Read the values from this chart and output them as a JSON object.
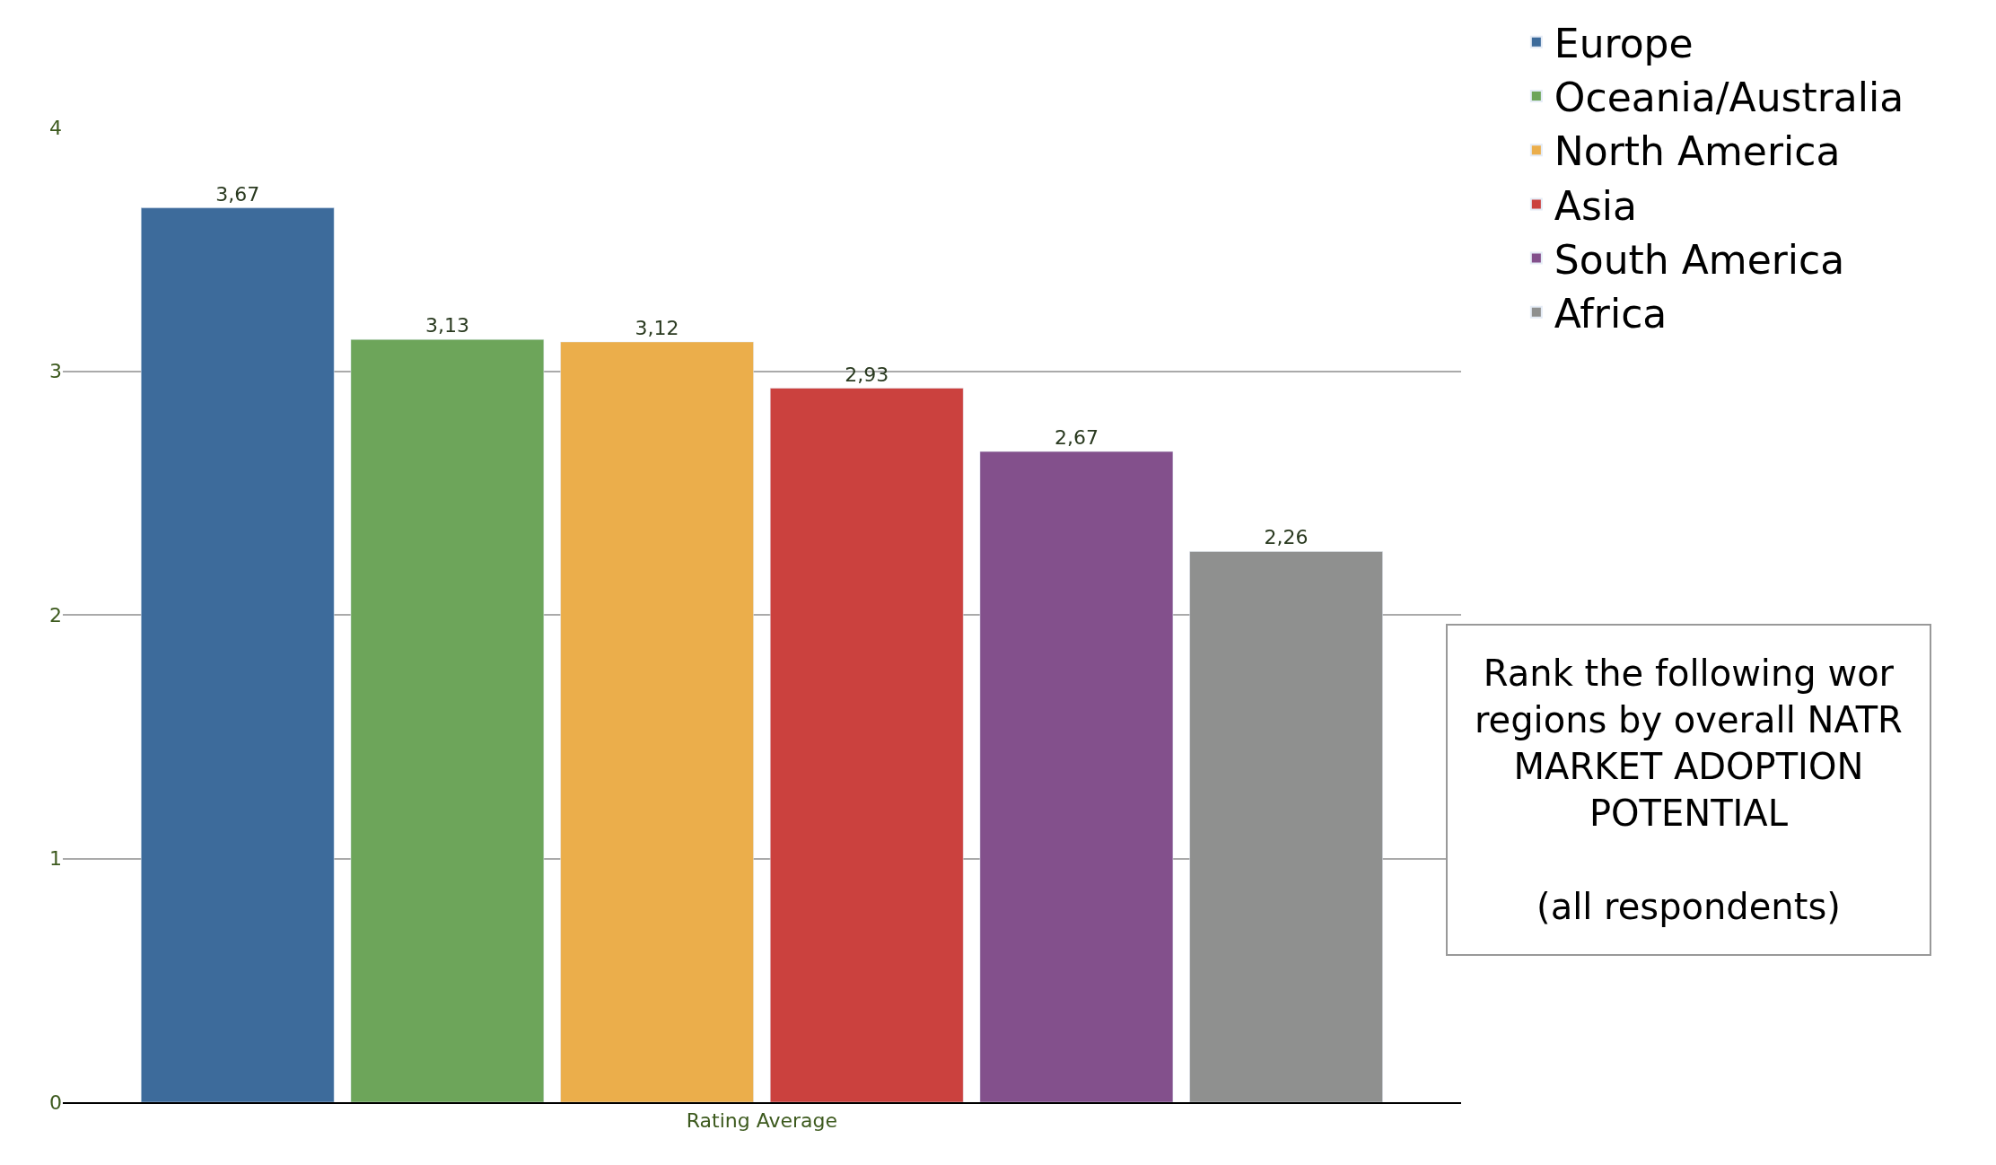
{
  "chart_data": {
    "type": "bar",
    "categories": [
      "Rating Average"
    ],
    "series": [
      {
        "name": "Europe",
        "color": "#3d6b9b",
        "values": [
          3.67
        ],
        "value_labels": [
          "3,67"
        ]
      },
      {
        "name": "Oceania/Australia",
        "color": "#6da55a",
        "values": [
          3.13
        ],
        "value_labels": [
          "3,13"
        ]
      },
      {
        "name": "North America",
        "color": "#ebae4b",
        "values": [
          3.12
        ],
        "value_labels": [
          "3,12"
        ]
      },
      {
        "name": "Asia",
        "color": "#cb413e",
        "values": [
          2.93
        ],
        "value_labels": [
          "2,93"
        ]
      },
      {
        "name": "South America",
        "color": "#83508c",
        "values": [
          2.67
        ],
        "value_labels": [
          "2,67"
        ]
      },
      {
        "name": "Africa",
        "color": "#8f908f",
        "values": [
          2.26
        ],
        "value_labels": [
          "2,26"
        ]
      }
    ],
    "ylim": [
      0,
      4
    ],
    "yticks": [
      0,
      1,
      2,
      3,
      4
    ],
    "grid": "y",
    "legend": "top right",
    "annotations": [
      "Rank the following wor\nregions by overall NATR\nMARKET ADOPTION\nPOTENTIAL\n\n(all respondents)"
    ]
  }
}
